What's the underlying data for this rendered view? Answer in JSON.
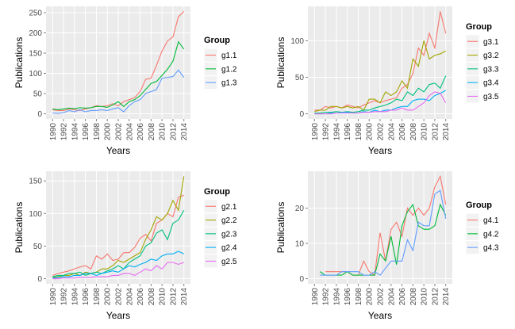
{
  "chart_data": [
    {
      "type": "line",
      "legend_title": "Group",
      "x_label": "Years",
      "y_label": "Publications",
      "x": [
        1990,
        1991,
        1992,
        1993,
        1994,
        1995,
        1996,
        1997,
        1998,
        1999,
        2000,
        2001,
        2002,
        2003,
        2004,
        2005,
        2006,
        2007,
        2008,
        2009,
        2010,
        2011,
        2012,
        2013,
        2014
      ],
      "xlim": [
        1988.8,
        2015.2
      ],
      "xticks": [
        1990,
        1992,
        1994,
        1996,
        1998,
        2000,
        2002,
        2004,
        2006,
        2008,
        2010,
        2012,
        2014
      ],
      "ylim": [
        -12.65,
        265.65
      ],
      "yticks": [
        0,
        50,
        100,
        150,
        200,
        250
      ],
      "grid": true,
      "legend": "right",
      "series": [
        {
          "name": "g1.1",
          "color": "#F8766D",
          "values": [
            10,
            8,
            8,
            12,
            10,
            8,
            12,
            15,
            20,
            18,
            20,
            25,
            20,
            30,
            35,
            40,
            55,
            85,
            88,
            120,
            155,
            180,
            190,
            240,
            253
          ]
        },
        {
          "name": "g1.2",
          "color": "#00BA38",
          "values": [
            12,
            10,
            12,
            14,
            13,
            15,
            14,
            15,
            18,
            18,
            16,
            22,
            30,
            18,
            30,
            35,
            45,
            60,
            75,
            80,
            95,
            110,
            130,
            178,
            160
          ]
        },
        {
          "name": "g1.3",
          "color": "#619CFF",
          "values": [
            2,
            1,
            3,
            8,
            5,
            10,
            5,
            8,
            8,
            10,
            8,
            12,
            15,
            5,
            20,
            30,
            35,
            50,
            55,
            60,
            88,
            90,
            92,
            108,
            90
          ]
        }
      ]
    },
    {
      "type": "line",
      "legend_title": "Group",
      "x_label": "Years",
      "y_label": "Publications",
      "x": [
        1990,
        1991,
        1992,
        1993,
        1994,
        1995,
        1996,
        1997,
        1998,
        1999,
        2000,
        2001,
        2002,
        2003,
        2004,
        2005,
        2006,
        2007,
        2008,
        2009,
        2010,
        2011,
        2012,
        2013,
        2014
      ],
      "xlim": [
        1988.8,
        2015.2
      ],
      "xticks": [
        1990,
        1992,
        1994,
        1996,
        1998,
        2000,
        2002,
        2004,
        2006,
        2008,
        2010,
        2012,
        2014
      ],
      "ylim": [
        -7,
        147
      ],
      "yticks": [
        0,
        50,
        100
      ],
      "grid": true,
      "legend": "right",
      "series": [
        {
          "name": "g3.1",
          "color": "#F8766D",
          "values": [
            5,
            5,
            10,
            8,
            10,
            8,
            12,
            10,
            8,
            12,
            15,
            18,
            15,
            18,
            20,
            22,
            35,
            40,
            55,
            90,
            80,
            110,
            90,
            140,
            110
          ]
        },
        {
          "name": "g3.2",
          "color": "#A3A500",
          "values": [
            3,
            5,
            5,
            10,
            10,
            8,
            10,
            8,
            10,
            5,
            20,
            20,
            15,
            30,
            25,
            30,
            45,
            35,
            75,
            65,
            100,
            75,
            80,
            82,
            86
          ]
        },
        {
          "name": "g3.3",
          "color": "#00BF7D",
          "values": [
            1,
            1,
            2,
            2,
            3,
            2,
            3,
            2,
            3,
            5,
            5,
            8,
            10,
            12,
            15,
            20,
            18,
            30,
            25,
            35,
            30,
            40,
            42,
            35,
            52
          ]
        },
        {
          "name": "g3.4",
          "color": "#00B0F6",
          "values": [
            0,
            0,
            0,
            1,
            1,
            2,
            2,
            1,
            1,
            3,
            2,
            5,
            3,
            5,
            5,
            8,
            10,
            10,
            18,
            20,
            20,
            18,
            25,
            28,
            32
          ]
        },
        {
          "name": "g3.5",
          "color": "#E76BF3",
          "values": [
            0,
            0,
            0,
            0,
            1,
            1,
            1,
            1,
            1,
            2,
            2,
            3,
            3,
            3,
            5,
            5,
            8,
            5,
            5,
            10,
            15,
            25,
            30,
            28,
            15
          ]
        }
      ]
    },
    {
      "type": "line",
      "legend_title": "Group",
      "x_label": "Years",
      "y_label": "Publications",
      "x": [
        1990,
        1991,
        1992,
        1993,
        1994,
        1995,
        1996,
        1997,
        1998,
        1999,
        2000,
        2001,
        2002,
        2003,
        2004,
        2005,
        2006,
        2007,
        2008,
        2009,
        2010,
        2011,
        2012,
        2013,
        2014
      ],
      "xlim": [
        1988.8,
        2015.2
      ],
      "xticks": [
        1990,
        1992,
        1994,
        1996,
        1998,
        2000,
        2002,
        2004,
        2006,
        2008,
        2010,
        2012,
        2014
      ],
      "ylim": [
        -7.85,
        164.85
      ],
      "yticks": [
        0,
        50,
        100,
        150
      ],
      "grid": true,
      "legend": "right",
      "series": [
        {
          "name": "g2.1",
          "color": "#F8766D",
          "values": [
            5,
            8,
            10,
            12,
            15,
            18,
            20,
            15,
            35,
            30,
            38,
            28,
            30,
            40,
            40,
            48,
            62,
            68,
            58,
            85,
            90,
            100,
            95,
            125,
            128
          ]
        },
        {
          "name": "g2.2",
          "color": "#A3A500",
          "values": [
            2,
            3,
            5,
            5,
            8,
            5,
            10,
            8,
            10,
            15,
            15,
            20,
            28,
            25,
            30,
            35,
            40,
            60,
            75,
            95,
            90,
            100,
            120,
            105,
            157
          ]
        },
        {
          "name": "g2.3",
          "color": "#00BF7D",
          "values": [
            3,
            5,
            5,
            8,
            8,
            10,
            5,
            8,
            10,
            8,
            12,
            15,
            20,
            15,
            25,
            30,
            35,
            50,
            55,
            70,
            75,
            60,
            85,
            90,
            105
          ]
        },
        {
          "name": "g2.4",
          "color": "#00B0F6",
          "values": [
            1,
            2,
            3,
            3,
            5,
            5,
            8,
            8,
            5,
            8,
            10,
            12,
            10,
            15,
            20,
            18,
            22,
            25,
            30,
            28,
            35,
            38,
            38,
            42,
            38
          ]
        },
        {
          "name": "g2.5",
          "color": "#E76BF3",
          "values": [
            0,
            0,
            1,
            1,
            1,
            2,
            2,
            2,
            3,
            3,
            3,
            5,
            5,
            8,
            8,
            5,
            10,
            15,
            12,
            20,
            15,
            25,
            25,
            22,
            25
          ]
        }
      ]
    },
    {
      "type": "line",
      "legend_title": "Group",
      "x_label": "Years",
      "y_label": "Publications",
      "x": [
        1990,
        1991,
        1992,
        1993,
        1994,
        1995,
        1996,
        1997,
        1998,
        1999,
        2000,
        2001,
        2002,
        2003,
        2004,
        2005,
        2006,
        2007,
        2008,
        2009,
        2010,
        2011,
        2012,
        2013,
        2014
      ],
      "xlim": [
        1988.8,
        2015.2
      ],
      "xticks": [
        1990,
        1992,
        1994,
        1996,
        1998,
        2000,
        2002,
        2004,
        2006,
        2008,
        2010,
        2012,
        2014
      ],
      "ylim": [
        -1.45,
        30.45
      ],
      "yticks": [
        0,
        10,
        20
      ],
      "grid": true,
      "legend": "right",
      "series": [
        {
          "name": "g4.1",
          "color": "#F8766D",
          "values": [
            null,
            null,
            2,
            2,
            2,
            2,
            2,
            1,
            1,
            5,
            2,
            1,
            13,
            5,
            14,
            16,
            12,
            20,
            18,
            20,
            18,
            20,
            26,
            29,
            21
          ]
        },
        {
          "name": "g4.2",
          "color": "#00BA38",
          "values": [
            null,
            2,
            1,
            1,
            1,
            1,
            2,
            1,
            1,
            1,
            1,
            1,
            7,
            5,
            12,
            4,
            15,
            19,
            21,
            15,
            14,
            14,
            15,
            21,
            18
          ]
        },
        {
          "name": "g4.3",
          "color": "#619CFF",
          "values": [
            null,
            1,
            1,
            1,
            1,
            2,
            2,
            2,
            2,
            1,
            1,
            2,
            1,
            3,
            5,
            5,
            5,
            11,
            8,
            16,
            15,
            15,
            24,
            25,
            17
          ]
        }
      ]
    }
  ]
}
